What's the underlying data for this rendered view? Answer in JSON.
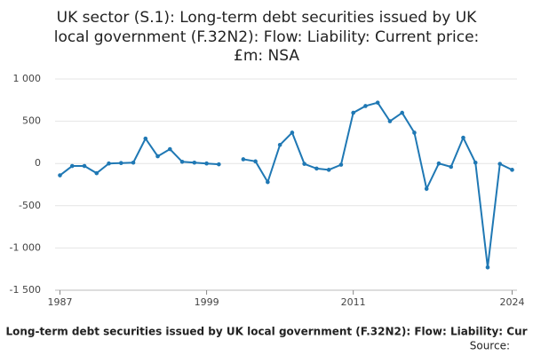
{
  "chart_data": {
    "type": "line",
    "title_lines": [
      "UK sector (S.1): Long-term debt securities issued by UK",
      "local government (F.32N2): Flow: Liability: Current price:",
      "£m: NSA"
    ],
    "footer": "Long-term debt securities issued by UK local government (F.32N2): Flow: Liability: Cur",
    "source": "Source:",
    "x": [
      1987,
      1988,
      1989,
      1990,
      1991,
      1992,
      1993,
      1994,
      1995,
      1996,
      1997,
      1998,
      1999,
      2000,
      2001,
      2002,
      2003,
      2004,
      2005,
      2006,
      2007,
      2008,
      2009,
      2010,
      2011,
      2012,
      2013,
      2014,
      2015,
      2016,
      2017,
      2018,
      2019,
      2020,
      2021,
      2022,
      2023,
      2024
    ],
    "series": [
      {
        "color": "#1f78b4",
        "values": [
          -140,
          -30,
          -30,
          -115,
          0,
          5,
          10,
          295,
          85,
          170,
          20,
          10,
          0,
          -10,
          null,
          50,
          25,
          -220,
          220,
          365,
          -5,
          -60,
          -75,
          -15,
          600,
          680,
          720,
          500,
          600,
          365,
          -300,
          0,
          -40,
          305,
          10,
          -1230,
          -5,
          -75
        ]
      }
    ],
    "xlim": [
      1986.6,
      2024.4
    ],
    "xticks": [
      1987,
      1999,
      2011,
      2024
    ],
    "ylim": [
      -1500,
      1000
    ],
    "yticks": [
      {
        "value": -1500,
        "label": "-1 500"
      },
      {
        "value": -1000,
        "label": "-1 000"
      },
      -500,
      0,
      500,
      {
        "value": 1000,
        "label": "1 000"
      }
    ],
    "grid": true
  }
}
